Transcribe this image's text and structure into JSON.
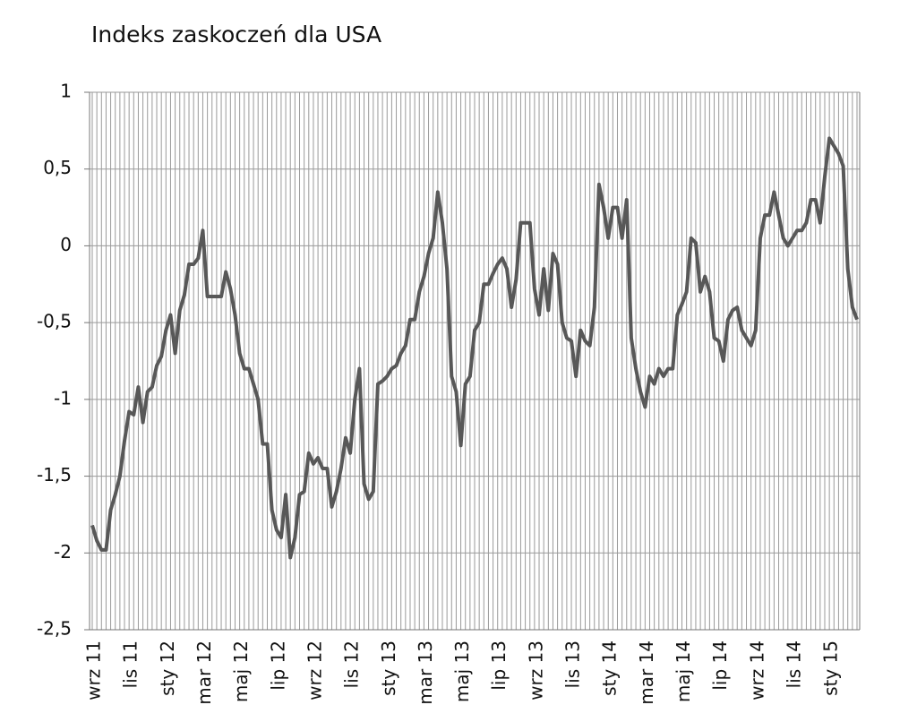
{
  "chart_data": {
    "type": "line",
    "title": "Indeks zaskoczeń dla USA",
    "categories": [
      "wrz 11",
      null,
      null,
      null,
      null,
      null,
      null,
      null,
      "lis 11",
      null,
      null,
      null,
      null,
      null,
      null,
      null,
      "sty 12",
      null,
      null,
      null,
      null,
      null,
      null,
      null,
      "mar 12",
      null,
      null,
      null,
      null,
      null,
      null,
      null,
      "maj 12",
      null,
      null,
      null,
      null,
      null,
      null,
      null,
      "lip 12",
      null,
      null,
      null,
      null,
      null,
      null,
      null,
      "wrz 12",
      null,
      null,
      null,
      null,
      null,
      null,
      null,
      "lis 12",
      null,
      null,
      null,
      null,
      null,
      null,
      null,
      "sty 13",
      null,
      null,
      null,
      null,
      null,
      null,
      null,
      "mar 13",
      null,
      null,
      null,
      null,
      null,
      null,
      null,
      "maj 13",
      null,
      null,
      null,
      null,
      null,
      null,
      null,
      "lip 13",
      null,
      null,
      null,
      null,
      null,
      null,
      null,
      "wrz 13",
      null,
      null,
      null,
      null,
      null,
      null,
      null,
      "lis 13",
      null,
      null,
      null,
      null,
      null,
      null,
      null,
      "sty 14",
      null,
      null,
      null,
      null,
      null,
      null,
      null,
      "mar 14",
      null,
      null,
      null,
      null,
      null,
      null,
      null,
      "maj 14",
      null,
      null,
      null,
      null,
      null,
      null,
      null,
      "lip 14",
      null,
      null,
      null,
      null,
      null,
      null,
      null,
      "wrz 14",
      null,
      null,
      null,
      null,
      null,
      null,
      null,
      "lis 14",
      null,
      null,
      null,
      null,
      null,
      null,
      null,
      "sty 15",
      null,
      null,
      null,
      null,
      null,
      null
    ],
    "values": [
      -1.82,
      -1.92,
      -1.98,
      -1.98,
      -1.72,
      -1.62,
      -1.5,
      -1.27,
      -1.08,
      -1.1,
      -0.92,
      -1.15,
      -0.95,
      -0.92,
      -0.78,
      -0.72,
      -0.55,
      -0.45,
      -0.7,
      -0.42,
      -0.32,
      -0.12,
      -0.12,
      -0.08,
      0.1,
      -0.33,
      -0.33,
      -0.33,
      -0.33,
      -0.17,
      -0.28,
      -0.45,
      -0.7,
      -0.8,
      -0.8,
      -0.9,
      -1.0,
      -1.29,
      -1.29,
      -1.72,
      -1.85,
      -1.9,
      -1.62,
      -2.03,
      -1.9,
      -1.62,
      -1.6,
      -1.35,
      -1.42,
      -1.38,
      -1.45,
      -1.45,
      -1.7,
      -1.6,
      -1.45,
      -1.25,
      -1.35,
      -1.0,
      -0.8,
      -1.55,
      -1.65,
      -1.6,
      -0.9,
      -0.88,
      -0.85,
      -0.8,
      -0.78,
      -0.7,
      -0.65,
      -0.48,
      -0.48,
      -0.3,
      -0.2,
      -0.05,
      0.05,
      0.35,
      0.15,
      -0.15,
      -0.85,
      -0.95,
      -1.3,
      -0.9,
      -0.85,
      -0.55,
      -0.5,
      -0.25,
      -0.25,
      -0.18,
      -0.12,
      -0.08,
      -0.15,
      -0.4,
      -0.22,
      0.15,
      0.15,
      0.15,
      -0.28,
      -0.45,
      -0.15,
      -0.42,
      -0.05,
      -0.12,
      -0.5,
      -0.6,
      -0.62,
      -0.85,
      -0.55,
      -0.62,
      -0.65,
      -0.4,
      0.4,
      0.25,
      0.05,
      0.25,
      0.25,
      0.05,
      0.3,
      -0.6,
      -0.8,
      -0.95,
      -1.05,
      -0.85,
      -0.9,
      -0.8,
      -0.85,
      -0.8,
      -0.8,
      -0.45,
      -0.38,
      -0.3,
      0.05,
      0.02,
      -0.3,
      -0.2,
      -0.3,
      -0.6,
      -0.62,
      -0.75,
      -0.48,
      -0.42,
      -0.4,
      -0.55,
      -0.6,
      -0.65,
      -0.55,
      0.05,
      0.2,
      0.2,
      0.35,
      0.2,
      0.05,
      0.0,
      0.05,
      0.1,
      0.1,
      0.15,
      0.3,
      0.3,
      0.15,
      0.45,
      0.7,
      0.65,
      0.6,
      0.52,
      -0.15,
      -0.4,
      -0.48
    ],
    "color": "#585858",
    "ylim": [
      -2.5,
      1
    ],
    "yticks": [
      1,
      {
        "value": 0.5,
        "label": "0,5"
      },
      0,
      {
        "value": -0.5,
        "label": "-0,5"
      },
      -1,
      {
        "value": -1.5,
        "label": "-1,5"
      },
      -2,
      {
        "value": -2.5,
        "label": "-2,5"
      }
    ],
    "grid": true
  }
}
